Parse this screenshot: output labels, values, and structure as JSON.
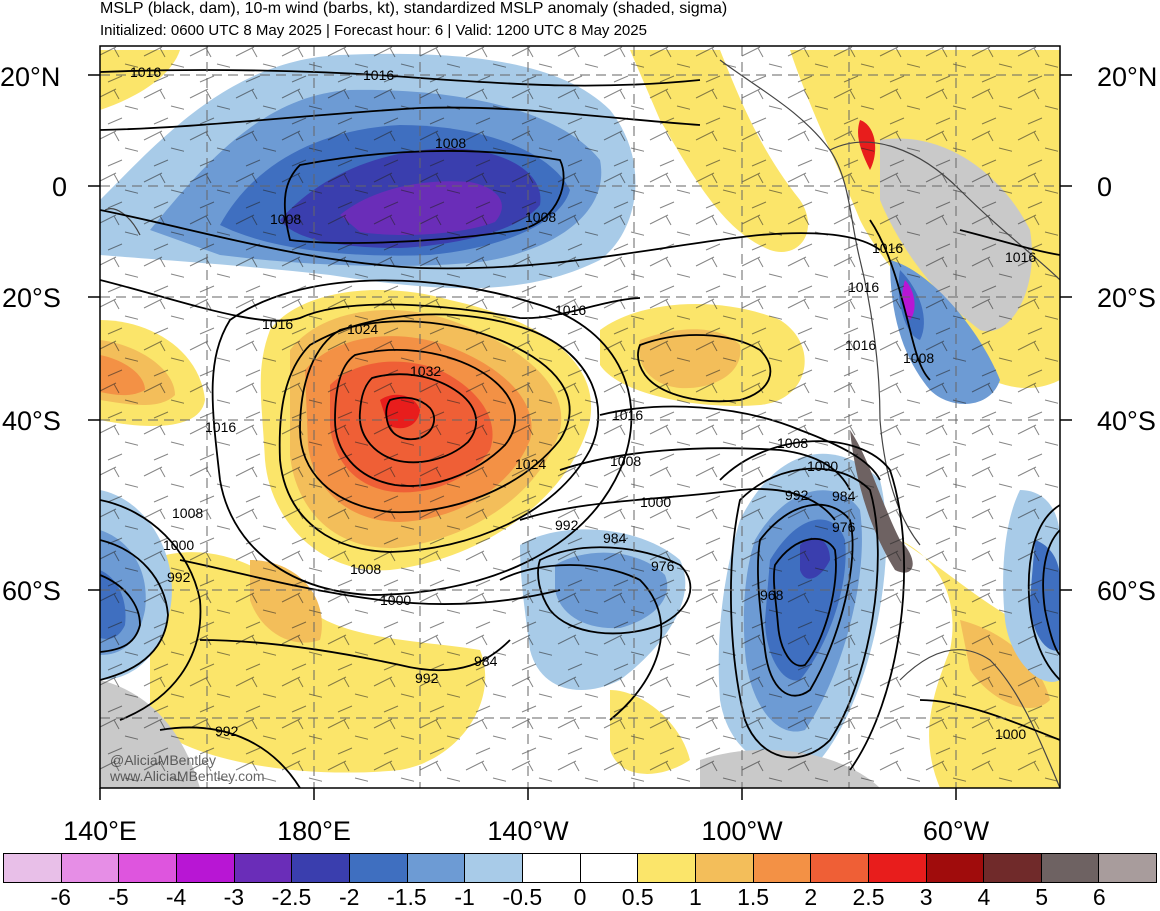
{
  "title": {
    "line1": "MSLP (black, dam), 10-m wind (barbs, kt), standardized MSLP anomaly (shaded, sigma)",
    "line2": "Initialized: 0600 UTC 8 May 2025 | Forecast hour: 6 | Valid: 1200 UTC 8 May 2025"
  },
  "lat_labels": [
    "20°N",
    "0",
    "20°S",
    "40°S",
    "60°S"
  ],
  "lon_labels": [
    "140°E",
    "180°E",
    "140°W",
    "100°W",
    "60°W"
  ],
  "contour_labels": [
    "1016",
    "1016",
    "1008",
    "1008",
    "1008",
    "1016",
    "1016",
    "1024",
    "1032",
    "1024",
    "1016",
    "1016",
    "1016",
    "1016",
    "1008",
    "1008",
    "1008",
    "1000",
    "992",
    "984",
    "976",
    "968",
    "1000",
    "992",
    "984",
    "976",
    "1008",
    "1000",
    "992",
    "1000",
    "992",
    "984",
    "992",
    "1000",
    "1016",
    "1016"
  ],
  "colorbar": {
    "colors": [
      "#e8bfe8",
      "#e68ee6",
      "#de55de",
      "#b816d4",
      "#6a2db8",
      "#3a3eae",
      "#3f6fc0",
      "#6d9bd4",
      "#a8cbe8",
      "#ffffff",
      "#ffffff",
      "#fbe56a",
      "#f3be5a",
      "#f39145",
      "#ef5f36",
      "#e81d1c",
      "#a00c0c",
      "#702a2a",
      "#6e6262",
      "#a89c9c"
    ],
    "labels": [
      "-6",
      "-5",
      "-4",
      "-3",
      "-2.5",
      "-2",
      "-1.5",
      "-1",
      "-0.5",
      "0",
      "0.5",
      "1",
      "1.5",
      "2",
      "2.5",
      "3",
      "4",
      "5",
      "6"
    ]
  },
  "watermark": {
    "line1": "@AliciaMBentley",
    "line2": "www.AliciaMBentley.com"
  }
}
